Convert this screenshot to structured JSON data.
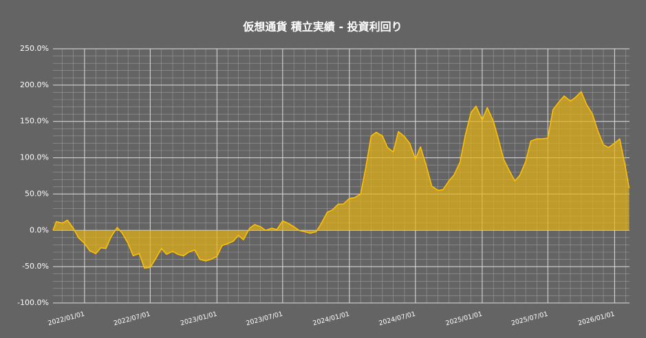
{
  "chart_data": {
    "type": "area",
    "title": "仮想通貨 積立実績 - 投資利回り",
    "color": "#ffc000",
    "fill_color": "rgba(230,178,20,0.7)",
    "grid": true,
    "minor_grid": true,
    "xlim": [
      "2021/10/06",
      "2026/02/11"
    ],
    "xticks": [
      "2022/01/01",
      "2022/07/01",
      "2023/01/01",
      "2023/07/01",
      "2024/01/01",
      "2024/07/01",
      "2025/01/01",
      "2025/07/01",
      "2026/01/01"
    ],
    "ylim": [
      -100,
      250
    ],
    "yticks": [
      {
        "value": -100,
        "label": "-100.0%"
      },
      {
        "value": -50,
        "label": "-50.0%"
      },
      {
        "value": 0,
        "label": "0.0%"
      },
      {
        "value": 50,
        "label": "50.0%"
      },
      {
        "value": 100,
        "label": "100.0%"
      },
      {
        "value": 150,
        "label": "150.0%"
      },
      {
        "value": 200,
        "label": "200.0%"
      },
      {
        "value": 250,
        "label": "250.0%"
      }
    ],
    "x": [
      "2021/10/06",
      "2021/10/15",
      "2021/11/01",
      "2021/11/15",
      "2021/12/01",
      "2021/12/15",
      "2022/01/01",
      "2022/01/15",
      "2022/02/01",
      "2022/02/15",
      "2022/03/01",
      "2022/03/15",
      "2022/04/01",
      "2022/04/15",
      "2022/05/01",
      "2022/05/15",
      "2022/06/01",
      "2022/06/15",
      "2022/07/01",
      "2022/07/15",
      "2022/08/01",
      "2022/08/15",
      "2022/09/01",
      "2022/09/15",
      "2022/10/01",
      "2022/10/15",
      "2022/11/01",
      "2022/11/15",
      "2022/12/01",
      "2022/12/15",
      "2023/01/01",
      "2023/01/15",
      "2023/02/01",
      "2023/02/15",
      "2023/03/01",
      "2023/03/15",
      "2023/04/01",
      "2023/04/15",
      "2023/05/01",
      "2023/05/15",
      "2023/06/01",
      "2023/06/15",
      "2023/07/01",
      "2023/07/15",
      "2023/08/01",
      "2023/08/15",
      "2023/09/01",
      "2023/09/15",
      "2023/10/01",
      "2023/10/15",
      "2023/11/01",
      "2023/11/15",
      "2023/12/01",
      "2023/12/15",
      "2024/01/01",
      "2024/01/15",
      "2024/02/01",
      "2024/02/15",
      "2024/03/01",
      "2024/03/15",
      "2024/04/01",
      "2024/04/15",
      "2024/05/01",
      "2024/05/15",
      "2024/06/01",
      "2024/06/15",
      "2024/07/01",
      "2024/07/15",
      "2024/08/01",
      "2024/08/15",
      "2024/09/01",
      "2024/09/15",
      "2024/10/01",
      "2024/10/15",
      "2024/11/01",
      "2024/11/15",
      "2024/12/01",
      "2024/12/15",
      "2025/01/01",
      "2025/01/15",
      "2025/02/01",
      "2025/02/15",
      "2025/03/01",
      "2025/03/15",
      "2025/04/01",
      "2025/04/15",
      "2025/05/01",
      "2025/05/15",
      "2025/06/01",
      "2025/06/15",
      "2025/07/01",
      "2025/07/15",
      "2025/08/01",
      "2025/08/15",
      "2025/09/01",
      "2025/09/15",
      "2025/10/01",
      "2025/10/15",
      "2025/11/01",
      "2025/11/15",
      "2025/12/01",
      "2025/12/15",
      "2026/01/01",
      "2026/01/15",
      "2026/02/01",
      "2026/02/10"
    ],
    "values": [
      0,
      12,
      10,
      14,
      3,
      -10,
      -18,
      -28,
      -32,
      -24,
      -25,
      -9,
      4,
      -4,
      -18,
      -35,
      -32,
      -52,
      -51,
      -40,
      -25,
      -33,
      -29,
      -33,
      -35,
      -30,
      -27,
      -40,
      -42,
      -40,
      -36,
      -21,
      -18,
      -15,
      -7,
      -13,
      3,
      8,
      5,
      0,
      3,
      1,
      13,
      10,
      5,
      0,
      -2,
      -4,
      -2,
      9,
      25,
      28,
      36,
      36,
      44,
      45,
      50,
      86,
      130,
      135,
      130,
      114,
      108,
      136,
      129,
      120,
      98,
      115,
      87,
      61,
      55,
      56,
      68,
      76,
      94,
      130,
      162,
      171,
      152,
      169,
      150,
      125,
      98,
      84,
      68,
      76,
      95,
      123,
      126,
      126,
      127,
      166,
      177,
      185,
      178,
      183,
      191,
      174,
      160,
      138,
      118,
      114,
      120,
      126,
      84,
      58
    ]
  }
}
